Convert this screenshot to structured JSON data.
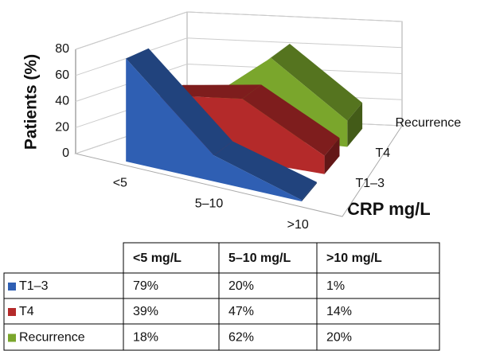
{
  "chart_data": {
    "type": "area3d",
    "ylabel": "Patients (%)",
    "xlabel": "CRP mg/L",
    "categories": [
      "<5",
      "5–10",
      ">10"
    ],
    "ylim": [
      0,
      80
    ],
    "yticks": [
      0,
      20,
      40,
      60,
      80
    ],
    "grid": true,
    "series": [
      {
        "name": "T1–3",
        "color": "#2f5fb3",
        "values": [
          79,
          20,
          1
        ],
        "value_labels": [
          "79%",
          "20%",
          "1%"
        ]
      },
      {
        "name": "T4",
        "color": "#b42a2a",
        "values": [
          39,
          47,
          14
        ],
        "value_labels": [
          "39%",
          "47%",
          "14%"
        ]
      },
      {
        "name": "Recurrence",
        "color": "#7aa62c",
        "values": [
          18,
          62,
          20
        ],
        "value_labels": [
          "18%",
          "62%",
          "20%"
        ]
      }
    ],
    "table": {
      "columns": [
        "<5 mg/L",
        "5–10 mg/L",
        ">10 mg/L"
      ]
    }
  }
}
